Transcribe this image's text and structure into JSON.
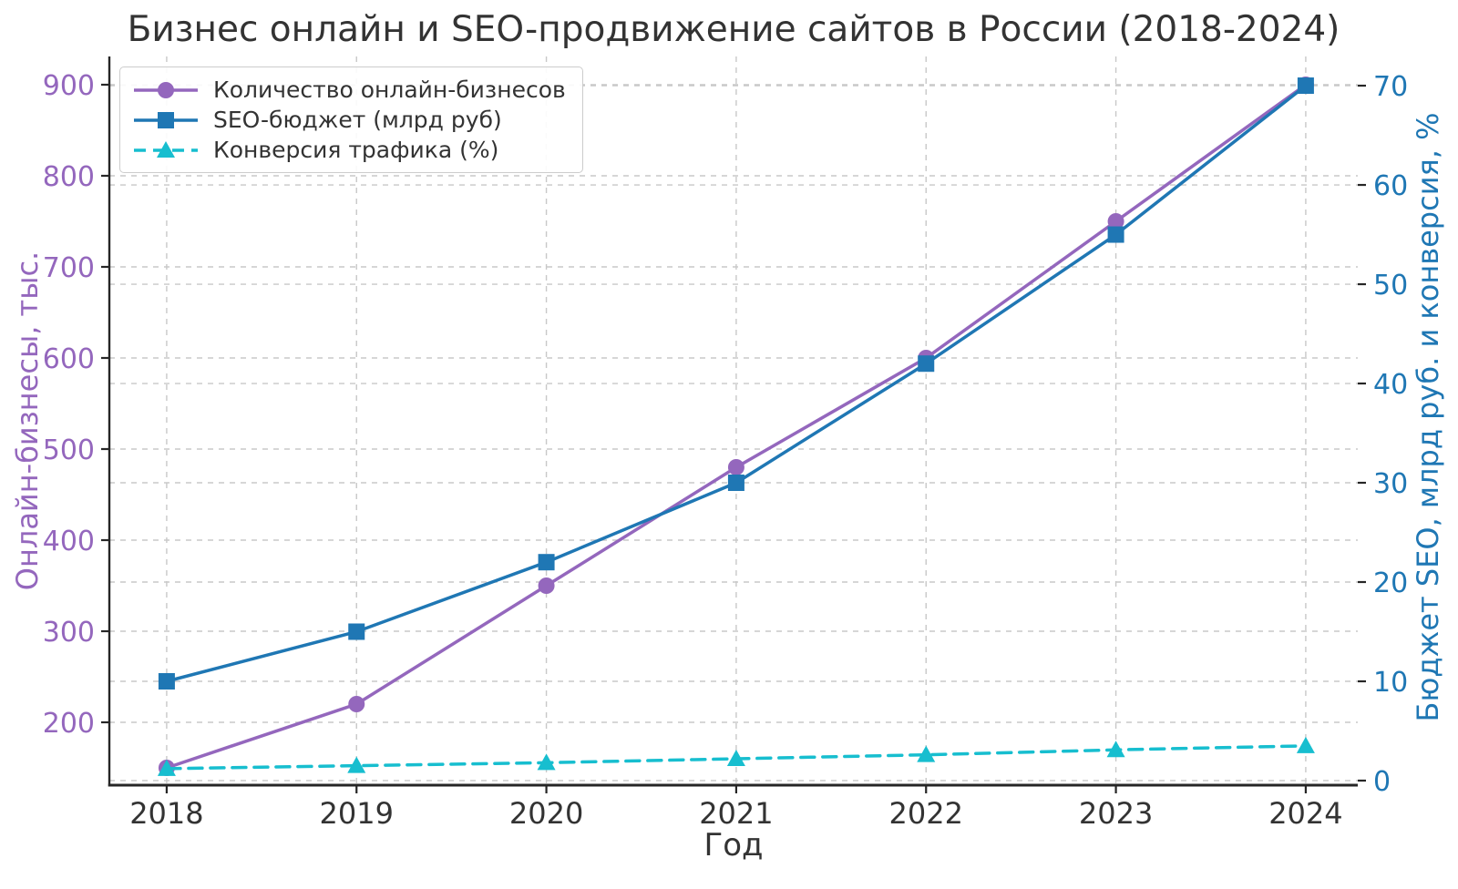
{
  "title": "Бизнес онлайн и SEO-продвижение сайтов в России (2018-2024)",
  "chart_data": {
    "type": "line",
    "x": [
      2018,
      2019,
      2020,
      2021,
      2022,
      2023,
      2024
    ],
    "xlabel": "Год",
    "x_range": [
      2017.698,
      2024.274
    ],
    "grid": true,
    "grid_style": "dashed",
    "legend_position": "upper left",
    "background": "#ffffff",
    "colors": {
      "grid": "#c8c8c8",
      "spine": "#262626",
      "text": "#333333",
      "purple": "#9467bd",
      "blue": "#1f77b4",
      "cyan": "#17becf"
    },
    "axes": {
      "left": {
        "label": "Онлайн-бизнесы, тыс.",
        "ticks": [
          200,
          300,
          400,
          500,
          600,
          700,
          800,
          900
        ],
        "range": [
          131,
          931
        ],
        "color": "#9467bd"
      },
      "right": {
        "label": "Бюджет SEO, млрд руб. и конверсия, %",
        "ticks": [
          0,
          10,
          20,
          30,
          40,
          50,
          60,
          70
        ],
        "range": [
          -0.46,
          72.94
        ],
        "color": "#1f77b4"
      }
    },
    "series": [
      {
        "name": "Количество онлайн-бизнесов",
        "axis": "left",
        "color": "#9467bd",
        "marker": "circle",
        "line_style": "solid",
        "values": [
          150,
          220,
          350,
          480,
          600,
          750,
          900
        ]
      },
      {
        "name": "SEO-бюджет (млрд руб)",
        "axis": "right",
        "color": "#1f77b4",
        "marker": "square",
        "line_style": "solid",
        "values": [
          10,
          15,
          22,
          30,
          42,
          55,
          70
        ]
      },
      {
        "name": "Конверсия трафика (%)",
        "axis": "right",
        "color": "#17becf",
        "marker": "triangle",
        "line_style": "dashed",
        "values": [
          1.2,
          1.5,
          1.8,
          2.2,
          2.6,
          3.1,
          3.5
        ]
      }
    ]
  }
}
